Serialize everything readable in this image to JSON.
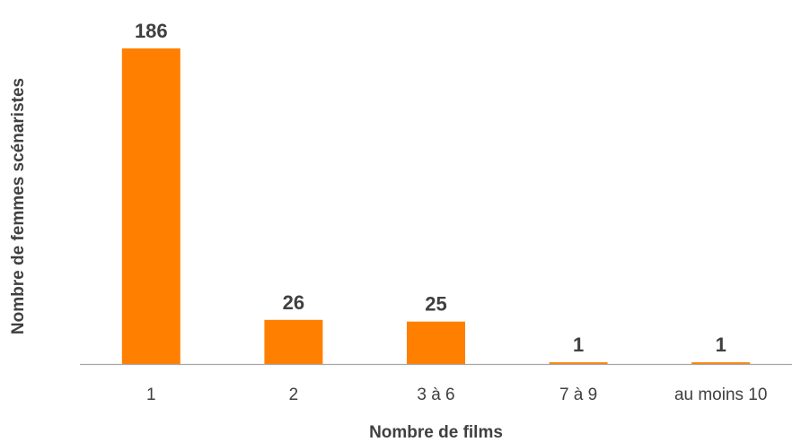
{
  "chart_data": {
    "type": "bar",
    "categories": [
      "1",
      "2",
      "3 à 6",
      "7 à 9",
      "au moins 10"
    ],
    "values": [
      186,
      26,
      25,
      1,
      1
    ],
    "data_labels": [
      "186",
      "26",
      "25",
      "1",
      "1"
    ],
    "xlabel": "Nombre de films",
    "ylabel": "Nombre de femmes scénaristes",
    "ylim": [
      0,
      186
    ],
    "grid": false,
    "legend": "none",
    "bar_color": "#FF8000",
    "axis_color": "#A6A6A6",
    "text_color": "#404040"
  }
}
